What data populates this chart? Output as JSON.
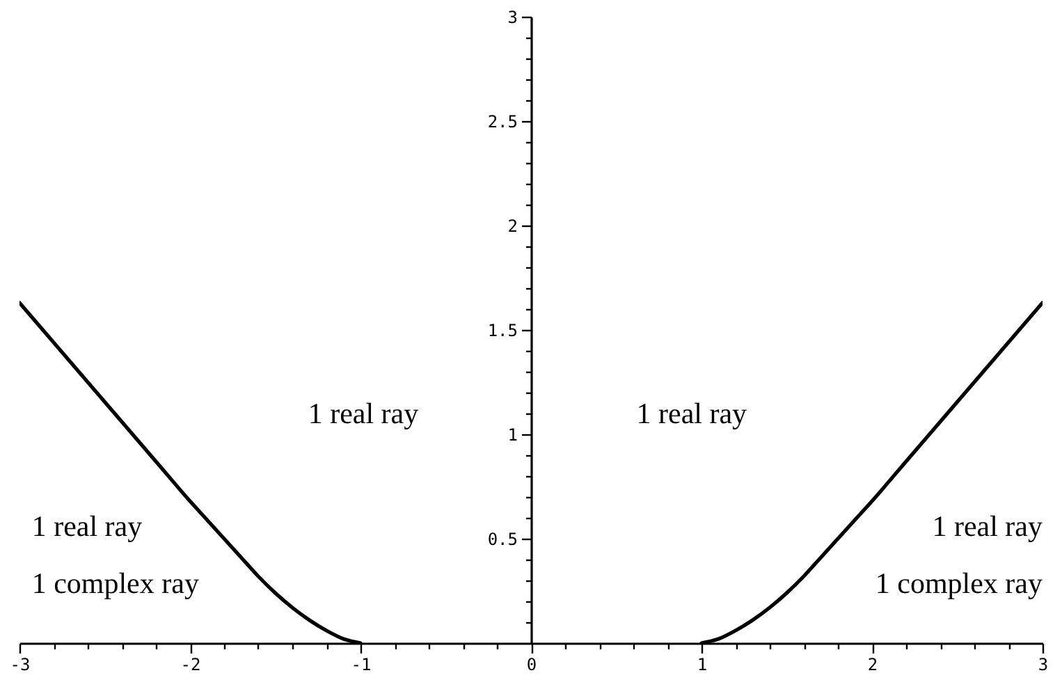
{
  "chart_data": {
    "type": "line",
    "xlim": [
      -3,
      3
    ],
    "ylim": [
      0,
      3
    ],
    "xticks": [
      -3,
      {
        "value": -2.8,
        "label": null
      },
      {
        "value": -2.6,
        "label": null
      },
      {
        "value": -2.4,
        "label": null
      },
      {
        "value": -2.2,
        "label": null
      },
      -2,
      {
        "value": -1.8,
        "label": null
      },
      {
        "value": -1.6,
        "label": null
      },
      {
        "value": -1.4,
        "label": null
      },
      {
        "value": -1.2,
        "label": null
      },
      -1,
      {
        "value": -0.8,
        "label": null
      },
      {
        "value": -0.6,
        "label": null
      },
      {
        "value": -0.4,
        "label": null
      },
      {
        "value": -0.2,
        "label": null
      },
      0,
      {
        "value": 0.2,
        "label": null
      },
      {
        "value": 0.4,
        "label": null
      },
      {
        "value": 0.6,
        "label": null
      },
      {
        "value": 0.8,
        "label": null
      },
      1,
      {
        "value": 1.2,
        "label": null
      },
      {
        "value": 1.4,
        "label": null
      },
      {
        "value": 1.6,
        "label": null
      },
      {
        "value": 1.8,
        "label": null
      },
      2,
      {
        "value": 2.2,
        "label": null
      },
      {
        "value": 2.4,
        "label": null
      },
      {
        "value": 2.6,
        "label": null
      },
      {
        "value": 2.8,
        "label": null
      },
      3
    ],
    "yticks": [
      {
        "value": 0.1,
        "label": null
      },
      {
        "value": 0.2,
        "label": null
      },
      {
        "value": 0.3,
        "label": null
      },
      {
        "value": 0.4,
        "label": null
      },
      0.5,
      {
        "value": 0.6,
        "label": null
      },
      {
        "value": 0.7,
        "label": null
      },
      {
        "value": 0.8,
        "label": null
      },
      {
        "value": 0.9,
        "label": null
      },
      1,
      {
        "value": 1.1,
        "label": null
      },
      {
        "value": 1.2,
        "label": null
      },
      {
        "value": 1.3,
        "label": null
      },
      {
        "value": 1.4,
        "label": null
      },
      1.5,
      {
        "value": 1.6,
        "label": null
      },
      {
        "value": 1.7,
        "label": null
      },
      {
        "value": 1.8,
        "label": null
      },
      {
        "value": 1.9,
        "label": null
      },
      2,
      {
        "value": 2.1,
        "label": null
      },
      {
        "value": 2.2,
        "label": null
      },
      {
        "value": 2.3,
        "label": null
      },
      {
        "value": 2.4,
        "label": null
      },
      2.5,
      {
        "value": 2.6,
        "label": null
      },
      {
        "value": 2.7,
        "label": null
      },
      {
        "value": 2.8,
        "label": null
      },
      {
        "value": 2.9,
        "label": null
      },
      3
    ],
    "series": [
      {
        "color": "#000000",
        "x": [
          -3.0,
          -2.8,
          -2.6,
          -2.4,
          -2.2,
          -2.0,
          -1.9,
          -1.8,
          -1.7,
          -1.6,
          -1.5,
          -1.4,
          -1.3,
          -1.2,
          -1.1,
          -1.0
        ],
        "values": [
          1.63,
          1.44,
          1.25,
          1.06,
          0.87,
          0.68,
          0.59,
          0.5,
          0.41,
          0.32,
          0.24,
          0.17,
          0.11,
          0.06,
          0.02,
          0.0
        ]
      },
      {
        "color": "#000000",
        "x": [
          1.0,
          1.1,
          1.2,
          1.3,
          1.4,
          1.5,
          1.6,
          1.7,
          1.8,
          1.9,
          2.0,
          2.2,
          2.4,
          2.6,
          2.8,
          3.0
        ],
        "values": [
          0.0,
          0.02,
          0.06,
          0.11,
          0.17,
          0.24,
          0.32,
          0.41,
          0.5,
          0.59,
          0.68,
          0.87,
          1.06,
          1.25,
          1.44,
          1.63
        ]
      }
    ],
    "annotations": [
      "1 real ray",
      "1 real ray",
      "1 real ray",
      "1 complex ray",
      "1 real ray",
      "1 complex ray"
    ],
    "line_style": "solid"
  }
}
